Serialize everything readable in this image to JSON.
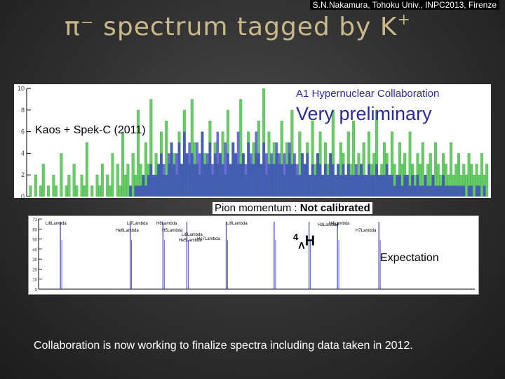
{
  "header": {
    "credit": "S.N.Nakamura, Tohoku Univ., INPC2013, Firenze",
    "title_pi": "π⁻",
    "title_text": " spectrum tagged by K",
    "title_sup": "+"
  },
  "annotations": {
    "collaboration": "A1 Hypernuclear Collaboration",
    "preliminary": "Very preliminary",
    "kaos": "Kaos + Spek-C (2011)",
    "pion_prefix": "Pion momentum  : ",
    "pion_bold": "Not calibrated",
    "h4_sup": "4",
    "h4_sub": "Λ",
    "h4_main": "H",
    "expectation": "Expectation"
  },
  "footer": {
    "text": "Collaboration is now working to finalize spectra including data taken in 2012."
  },
  "colors": {
    "title": "#c9b98a",
    "green": "#66cc66",
    "blue": "#3a3acc",
    "annot": "#2a2a9a"
  },
  "chart_data": [
    {
      "type": "bar",
      "title": "",
      "xlabel": "",
      "ylabel": "",
      "ylim": [
        0,
        10
      ],
      "yticks": [
        "10",
        "8",
        "6",
        "4",
        "2",
        "0"
      ],
      "series": [
        {
          "values": [
            0,
            1,
            0,
            2,
            0,
            1,
            3,
            0,
            1,
            0,
            2,
            1,
            0,
            4,
            0,
            1,
            2,
            0,
            3,
            1,
            0,
            2,
            1,
            5,
            0,
            1,
            0,
            2,
            1,
            3,
            0,
            2,
            1,
            4,
            0,
            3,
            1,
            6,
            2,
            3,
            1,
            4,
            2,
            8,
            3,
            2,
            5,
            3,
            9,
            2,
            4,
            3,
            6,
            2,
            7,
            3,
            5,
            4,
            2,
            6,
            3,
            8,
            4,
            3,
            9,
            5,
            3,
            2,
            6,
            4,
            3,
            7,
            2,
            5,
            3,
            4,
            6,
            2,
            8,
            3,
            5,
            4,
            3,
            9,
            4,
            2,
            6,
            3,
            5,
            4,
            7,
            3,
            10,
            2,
            6,
            3,
            5,
            4,
            3,
            7,
            2,
            5,
            4,
            8,
            3,
            2,
            6,
            4,
            3,
            5,
            2,
            7,
            3,
            4,
            6,
            2,
            5,
            3,
            4,
            8,
            2,
            3,
            5,
            4,
            2,
            6,
            3,
            7,
            2,
            4,
            3,
            5,
            2,
            6,
            3,
            4,
            8,
            2,
            3,
            5,
            4,
            2,
            6,
            3,
            2,
            5,
            3,
            4,
            2,
            6,
            3,
            2,
            4,
            3,
            5,
            2,
            3,
            4,
            2,
            5,
            3,
            2,
            4,
            3,
            2,
            5,
            2,
            3,
            4,
            2,
            3,
            2,
            4,
            3,
            2,
            3,
            2,
            4,
            2,
            3
          ]
        },
        {
          "values": [
            0,
            0,
            0,
            0,
            0,
            0,
            0,
            0,
            0,
            0,
            0,
            0,
            0,
            0,
            0,
            0,
            0,
            0,
            0,
            0,
            0,
            0,
            0,
            0,
            0,
            0,
            0,
            0,
            0,
            0,
            0,
            0,
            0,
            0,
            0,
            0,
            0,
            0,
            0,
            0,
            1,
            0,
            1,
            1,
            1,
            2,
            1,
            2,
            3,
            2,
            2,
            3,
            4,
            3,
            2,
            4,
            5,
            3,
            4,
            5,
            3,
            6,
            4,
            5,
            4,
            3,
            5,
            4,
            6,
            3,
            4,
            5,
            3,
            4,
            6,
            4,
            3,
            5,
            4,
            3,
            5,
            4,
            6,
            3,
            4,
            3,
            5,
            4,
            3,
            6,
            4,
            3,
            5,
            4,
            3,
            4,
            3,
            5,
            4,
            3,
            4,
            3,
            5,
            3,
            4,
            3,
            2,
            4,
            3,
            4,
            2,
            3,
            2,
            4,
            3,
            2,
            3,
            2,
            4,
            3,
            2,
            3,
            2,
            3,
            2,
            3,
            2,
            2,
            3,
            2,
            3,
            2,
            2,
            3,
            2,
            2,
            3,
            2,
            2,
            2,
            3,
            2,
            2,
            1,
            2,
            2,
            1,
            2,
            2,
            1,
            2,
            1,
            2,
            1,
            1,
            2,
            1,
            1,
            2,
            1,
            1,
            1,
            2,
            1,
            1,
            1,
            1,
            1,
            1,
            1,
            1,
            0,
            1,
            1,
            0,
            1,
            1,
            0,
            1,
            0
          ]
        }
      ]
    },
    {
      "type": "line",
      "title": "",
      "xlabel": "",
      "ylabel": "",
      "yticks": [
        "72",
        "60",
        "50",
        "40",
        "30",
        "20",
        "10",
        "0"
      ],
      "peak_labels": [
        "Li6Lambda",
        "Li7Lambda",
        "H6Lambda",
        "He6Lambda",
        "H5Lambda",
        "He7Lambda",
        "He5Lambda",
        "Li8Lambda",
        "Li9Lambda",
        "H3Lambda",
        "H4Lambda",
        "H7Lambda"
      ],
      "peaks_x": [
        0.05,
        0.21,
        0.285,
        0.34,
        0.43,
        0.54,
        0.62,
        0.685,
        0.78
      ]
    }
  ]
}
